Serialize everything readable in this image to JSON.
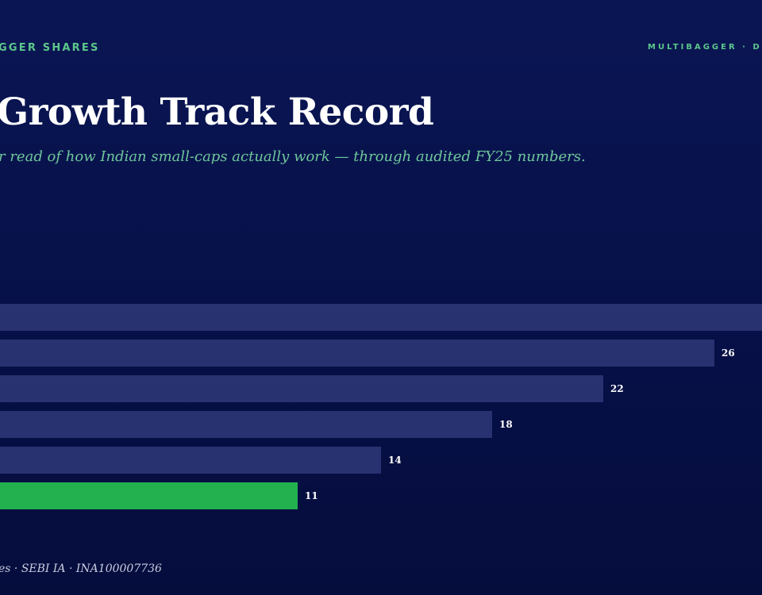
{
  "header": {
    "brand_left": "GGER SHARES",
    "brand_right": "MULTIBAGGER · D"
  },
  "title": "Growth Track Record",
  "subtitle": "r read of how Indian small-caps actually work — through audited FY25 numbers.",
  "footer": "es · SEBI IA · INA100007736",
  "colors": {
    "bar_default": "#283270",
    "bar_highlight": "#23b150",
    "accent": "#5cc78b",
    "background": "#07114a"
  },
  "chart_data": {
    "type": "bar",
    "orientation": "horizontal",
    "values": [
      30,
      26,
      22,
      18,
      14,
      11
    ],
    "value_labels": [
      "",
      "26",
      "22",
      "18",
      "14",
      "11"
    ],
    "highlight_index": 5
  }
}
